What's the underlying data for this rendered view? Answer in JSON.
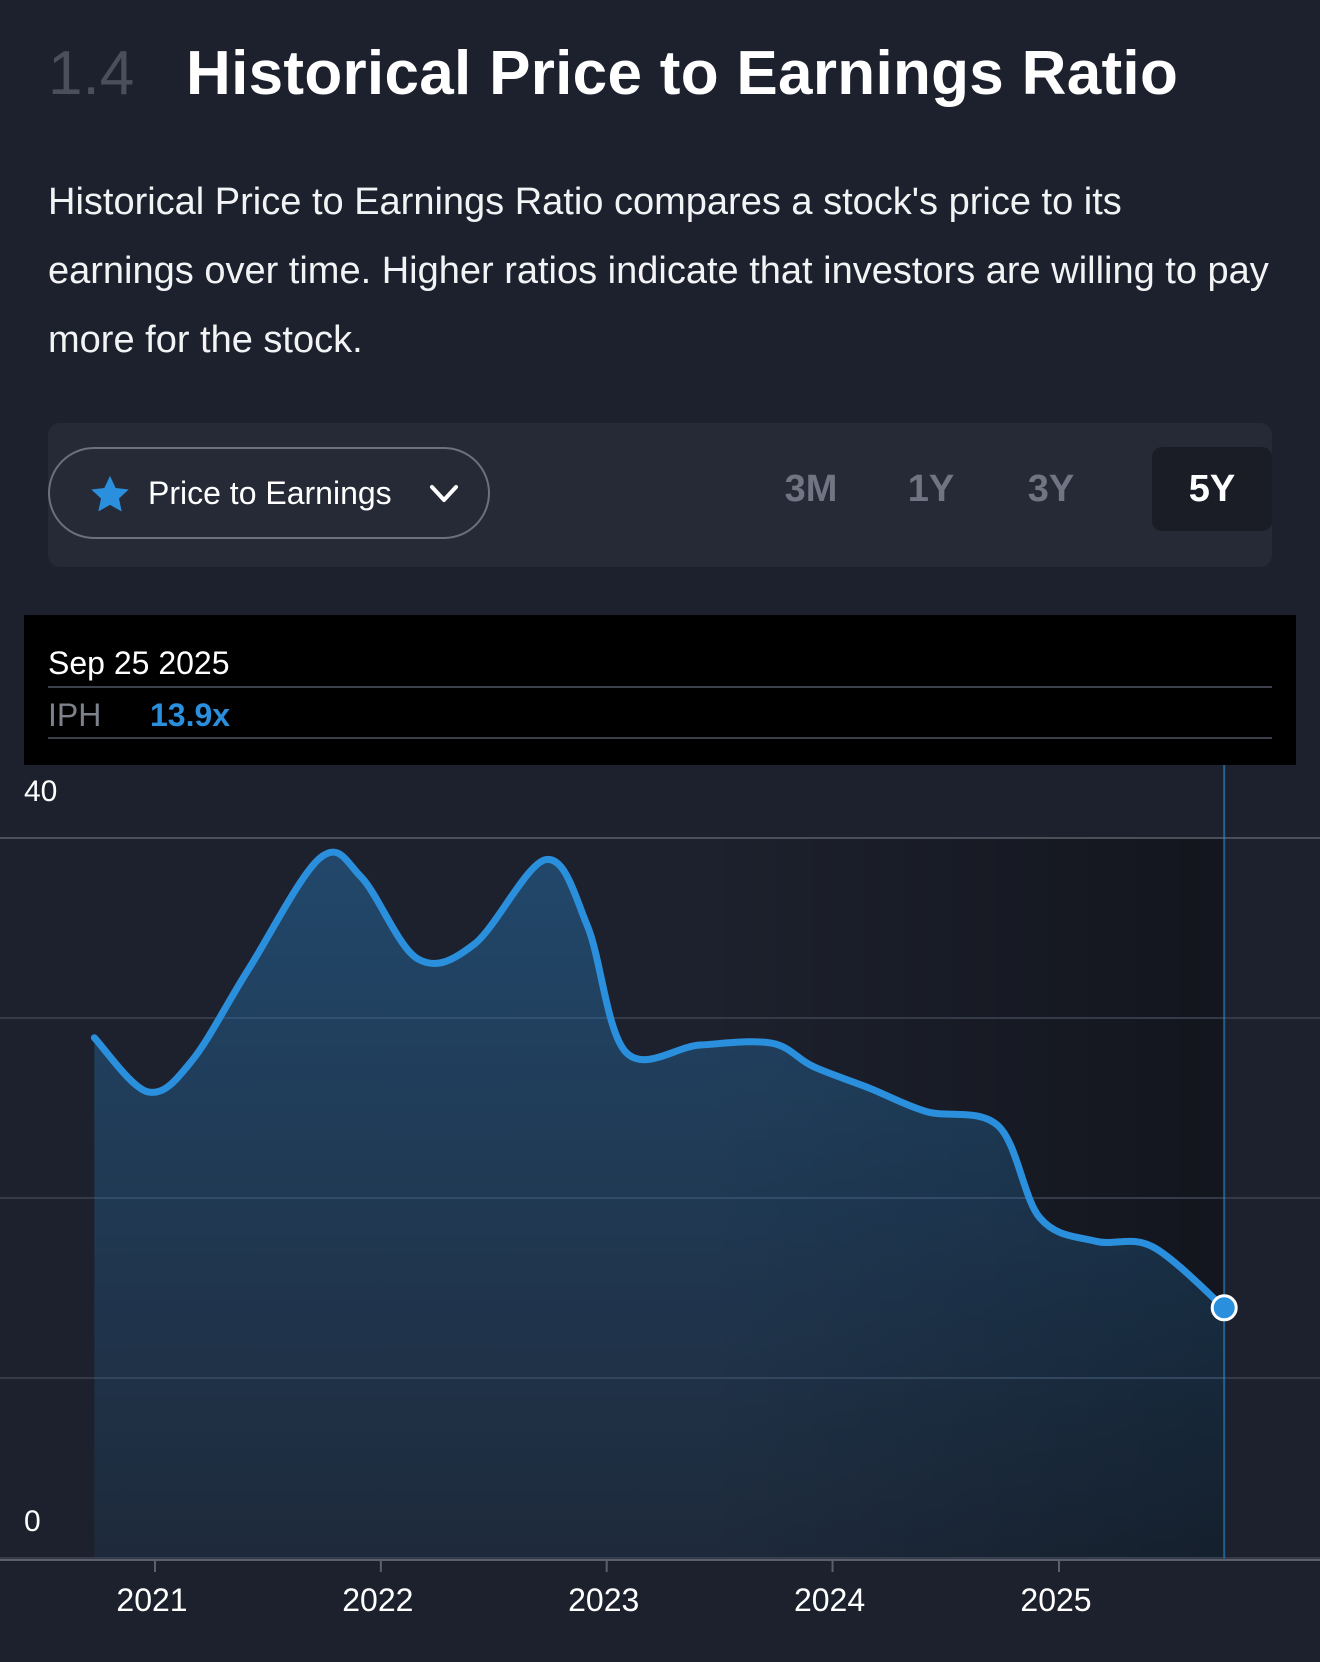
{
  "section": {
    "number": "1.4",
    "title": "Historical Price to Earnings Ratio",
    "description": "Historical Price to Earnings Ratio compares a stock's price to its earnings over time. Higher ratios indicate that investors are willing to pay more for the stock."
  },
  "controls": {
    "metric_label": "Price to Earnings",
    "metric_icon": "star-icon",
    "ranges": [
      "3M",
      "1Y",
      "3Y",
      "5Y"
    ],
    "active_range": "5Y"
  },
  "tooltip": {
    "date": "Sep 25 2025",
    "ticker": "IPH",
    "value": "13.9x"
  },
  "colors": {
    "line": "#2a8fdc",
    "value": "#2a8fdc",
    "background": "#1d212d"
  },
  "chart_data": {
    "type": "area",
    "ylim": [
      0,
      40
    ],
    "y_tick_labels": [
      "40",
      "0"
    ],
    "x_tick_labels": [
      "2021",
      "2022",
      "2023",
      "2024",
      "2025"
    ],
    "series": [
      {
        "x": [
          "2020-09-25",
          "2020-12-20",
          "2021-03-01",
          "2021-06-01",
          "2021-09-25",
          "2021-12-01",
          "2022-03-01",
          "2022-06-01",
          "2022-09-25",
          "2022-12-01",
          "2023-02-01",
          "2023-06-01",
          "2023-09-25",
          "2023-12-01",
          "2024-03-01",
          "2024-06-01",
          "2024-09-25",
          "2024-12-01",
          "2025-03-01",
          "2025-06-01",
          "2025-09-25"
        ],
        "values": [
          28.9,
          25.9,
          27.6,
          32.7,
          38.9,
          37.8,
          33.3,
          34.1,
          38.8,
          35.1,
          28.1,
          28.5,
          28.6,
          27.3,
          26.1,
          24.8,
          24.0,
          18.9,
          17.6,
          17.3,
          13.9
        ]
      }
    ],
    "highlight": {
      "date": "2025-09-25",
      "value": 13.9
    }
  }
}
